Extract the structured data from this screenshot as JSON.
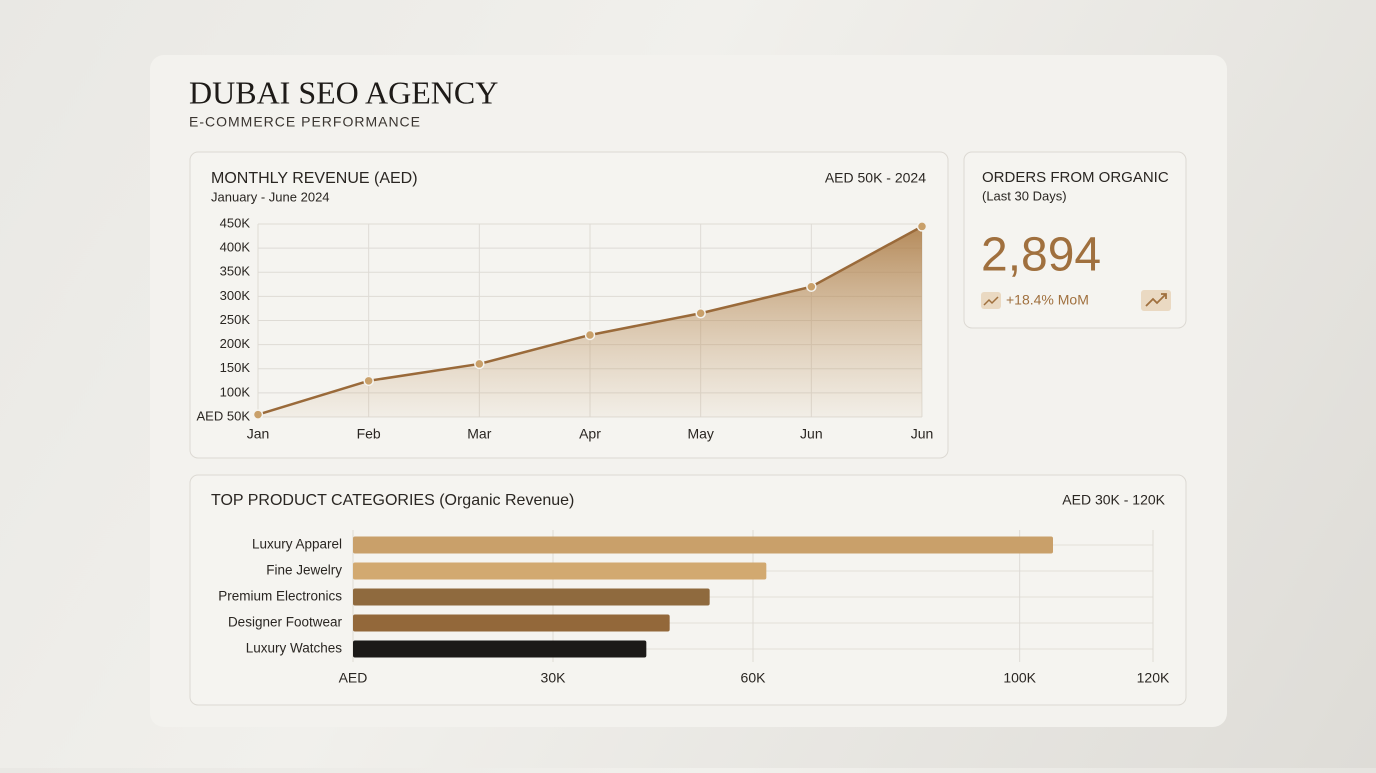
{
  "header": {
    "title": "DUBAI SEO AGENCY",
    "subtitle": "E-COMMERCE PERFORMANCE"
  },
  "kpi": {
    "title": "ORDERS FROM ORGANIC",
    "period": "(Last 30 Days)",
    "value": "2,894",
    "change": "+18.4% MoM"
  },
  "chart_data": [
    {
      "type": "line",
      "title": "MONTHLY REVENUE (AED)",
      "subtitle": "January - June 2024",
      "range_label": "AED 50K - 2024",
      "categories": [
        "Jan",
        "Feb",
        "Mar",
        "Apr",
        "May",
        "Jun",
        "Jun"
      ],
      "values": [
        55000,
        125000,
        160000,
        220000,
        265000,
        320000,
        445000
      ],
      "color": "#9a6a3a",
      "ylim": [
        50000,
        450000
      ],
      "yticks": [
        {
          "value": 50000,
          "label": "AED 50K"
        },
        {
          "value": 100000,
          "label": "100K"
        },
        {
          "value": 150000,
          "label": "150K"
        },
        {
          "value": 200000,
          "label": "200K"
        },
        {
          "value": 250000,
          "label": "250K"
        },
        {
          "value": 300000,
          "label": "300K"
        },
        {
          "value": 350000,
          "label": "350K"
        },
        {
          "value": 400000,
          "label": "400K"
        },
        {
          "value": 450000,
          "label": "450K"
        }
      ],
      "grid": true
    },
    {
      "type": "hbar",
      "title": "TOP PRODUCT CATEGORIES (Organic Revenue)",
      "range_label": "AED 30K - 120K",
      "categories": [
        "Luxury Apparel",
        "Fine Jewelry",
        "Premium Electronics",
        "Designer Footwear",
        "Luxury Watches"
      ],
      "values": [
        105000,
        62000,
        53500,
        47500,
        44000
      ],
      "colors": [
        "#c9a06a",
        "#d2a970",
        "#8f6a3e",
        "#93683a",
        "#1c1a18"
      ],
      "xlim": [
        0,
        120000
      ],
      "xticks": [
        {
          "value": 0,
          "label": "AED"
        },
        {
          "value": 30000,
          "label": "30K"
        },
        {
          "value": 60000,
          "label": "60K"
        },
        {
          "value": 100000,
          "label": "100K"
        },
        {
          "value": 120000,
          "label": "120K"
        }
      ],
      "grid": true
    }
  ]
}
